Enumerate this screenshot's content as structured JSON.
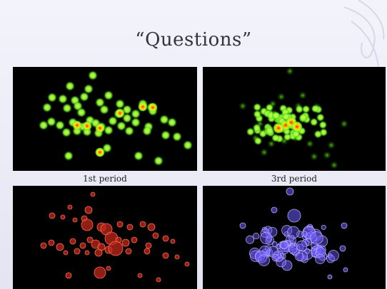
{
  "slide": {
    "title": "“Questions”",
    "captions": {
      "first": "1st period",
      "third": "3rd period"
    }
  },
  "colors": {
    "background": "#eeeef8",
    "panel": "#000000",
    "heat_green": "#8cff3a",
    "heat_yellow": "#ffe600",
    "heat_red": "#ff2000",
    "bubble_red": "#c0281c",
    "bubble_blue": "#6e5cff"
  }
}
